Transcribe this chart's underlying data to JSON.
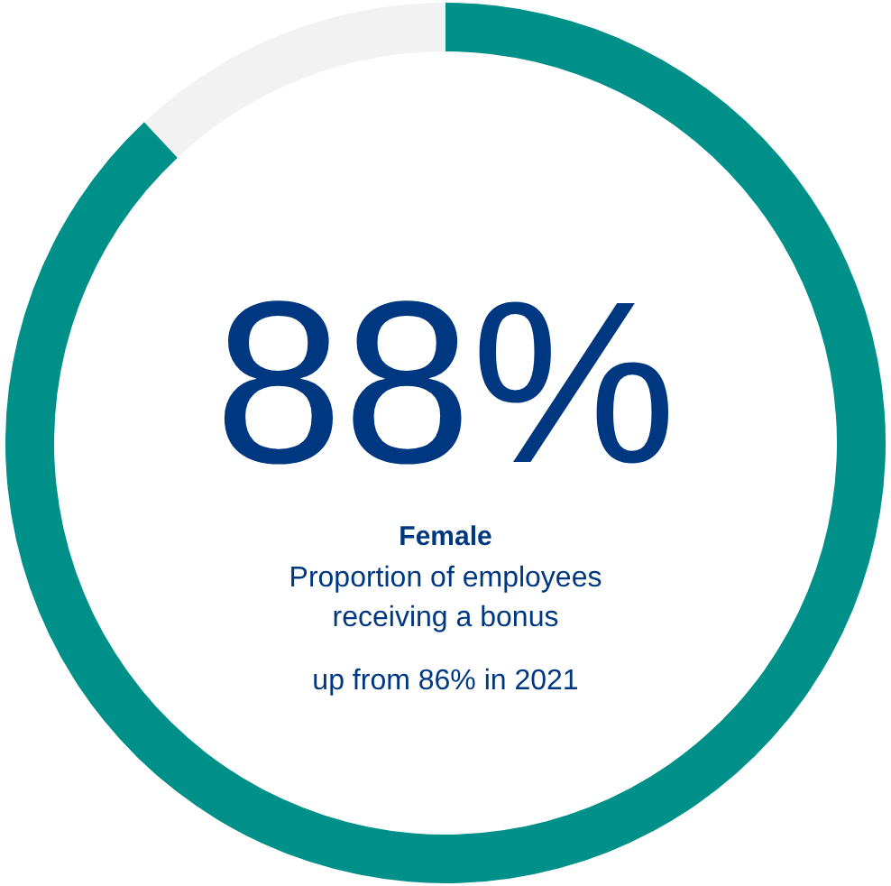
{
  "chart_data": {
    "type": "donut",
    "categories": [
      null,
      null
    ],
    "values": [
      88,
      12
    ],
    "colors": [
      "#00908a",
      "#f2f2f2"
    ],
    "annotations": [
      "88%",
      "Female",
      "Proportion of employees receiving a bonus",
      "up from 86% in 2021"
    ]
  }
}
